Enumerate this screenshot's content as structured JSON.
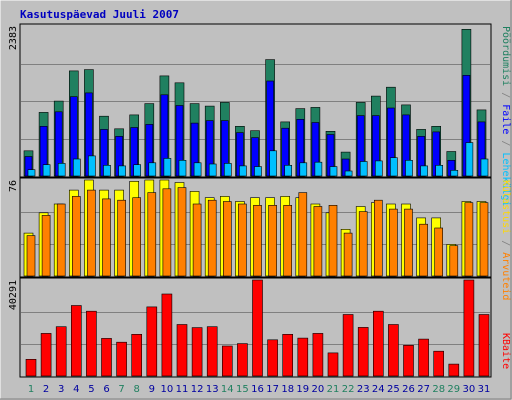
{
  "title": "Kasutuspäevad Juuli 2007",
  "colors": {
    "weekday_label": "#009000",
    "weekend_label": "#208060",
    "ascii_gray": "#303030",
    "plot_bg": "#c0c0c0",
    "hits": "#208060",
    "files": "#0000ff",
    "pages": "#00c0ff",
    "visits": "#ffff00",
    "sites": "#ff8000",
    "kbytes": "#ff0000",
    "slash": "#808080"
  },
  "right_labels": {
    "top": [
      "Pöördumisi",
      "Faile",
      "Lehekülgi"
    ],
    "middle": [
      "Külastusi",
      "Arvuteid"
    ],
    "bottom": [
      "KBaite"
    ]
  },
  "chart_data": [
    {
      "type": "bar",
      "panel": "hits-files-pages",
      "title": "Kasutuspäevad Juuli 2007",
      "ylabel": "2383",
      "ylim": [
        0,
        2383
      ],
      "categories": [
        "1",
        "2",
        "3",
        "4",
        "5",
        "6",
        "7",
        "8",
        "9",
        "10",
        "11",
        "12",
        "13",
        "14",
        "15",
        "16",
        "17",
        "18",
        "19",
        "20",
        "21",
        "22",
        "23",
        "24",
        "25",
        "26",
        "27",
        "28",
        "29",
        "30",
        "31"
      ],
      "weekend_days": [
        "1",
        "7",
        "8",
        "14",
        "15",
        "21",
        "22",
        "28",
        "29"
      ],
      "series": [
        {
          "name": "Pöördumisi",
          "color_key": "hits",
          "values": [
            400,
            1010,
            1190,
            1670,
            1690,
            950,
            750,
            970,
            1150,
            1590,
            1480,
            1150,
            1110,
            1170,
            790,
            720,
            1850,
            860,
            1070,
            1090,
            710,
            380,
            1170,
            1270,
            1410,
            1130,
            740,
            790,
            390,
            2330,
            1050
          ]
        },
        {
          "name": "Faile",
          "color_key": "files",
          "values": [
            310,
            790,
            1020,
            1260,
            1320,
            740,
            630,
            770,
            820,
            1290,
            1120,
            840,
            880,
            880,
            690,
            610,
            1510,
            760,
            900,
            850,
            660,
            270,
            960,
            960,
            1080,
            970,
            630,
            700,
            250,
            1600,
            860
          ]
        },
        {
          "name": "Lehekülgi",
          "color_key": "pages",
          "values": [
            100,
            180,
            200,
            270,
            320,
            170,
            160,
            180,
            210,
            280,
            250,
            210,
            190,
            200,
            160,
            150,
            400,
            170,
            210,
            220,
            150,
            80,
            230,
            240,
            290,
            250,
            160,
            170,
            90,
            530,
            270
          ]
        }
      ]
    },
    {
      "type": "bar",
      "panel": "visits-sites",
      "ylabel": "76",
      "ylim": [
        0,
        76
      ],
      "categories": [
        "1",
        "2",
        "3",
        "4",
        "5",
        "6",
        "7",
        "8",
        "9",
        "10",
        "11",
        "12",
        "13",
        "14",
        "15",
        "16",
        "17",
        "18",
        "19",
        "20",
        "21",
        "22",
        "23",
        "24",
        "25",
        "26",
        "27",
        "28",
        "29",
        "30",
        "31"
      ],
      "series": [
        {
          "name": "Külastusi",
          "color_key": "visits",
          "values": [
            34,
            50,
            57,
            68,
            76,
            68,
            68,
            75,
            76,
            76,
            74,
            67,
            62,
            63,
            59,
            62,
            62,
            63,
            62,
            57,
            50,
            37,
            55,
            58,
            57,
            57,
            46,
            46,
            25,
            59,
            59
          ]
        },
        {
          "name": "Arvuteid",
          "color_key": "sites",
          "values": [
            32,
            48,
            57,
            63,
            68,
            61,
            60,
            62,
            66,
            69,
            70,
            57,
            60,
            59,
            57,
            56,
            56,
            56,
            66,
            55,
            56,
            34,
            51,
            60,
            53,
            53,
            41,
            38,
            24,
            58,
            58
          ]
        }
      ]
    },
    {
      "type": "bar",
      "panel": "kbytes",
      "ylabel": "40291",
      "ylim": [
        0,
        40291
      ],
      "categories": [
        "1",
        "2",
        "3",
        "4",
        "5",
        "6",
        "7",
        "8",
        "9",
        "10",
        "11",
        "12",
        "13",
        "14",
        "15",
        "16",
        "17",
        "18",
        "19",
        "20",
        "21",
        "22",
        "23",
        "24",
        "25",
        "26",
        "27",
        "28",
        "29",
        "30",
        "31"
      ],
      "series": [
        {
          "name": "KBaite",
          "color_key": "kbytes",
          "values": [
            7000,
            17900,
            20700,
            29600,
            27200,
            15800,
            14200,
            17500,
            29000,
            34400,
            21600,
            20300,
            20700,
            12600,
            13600,
            40291,
            15200,
            17500,
            15900,
            17900,
            9700,
            25800,
            20400,
            27200,
            21600,
            12900,
            15500,
            10400,
            5000,
            40291,
            25800
          ]
        }
      ]
    }
  ]
}
